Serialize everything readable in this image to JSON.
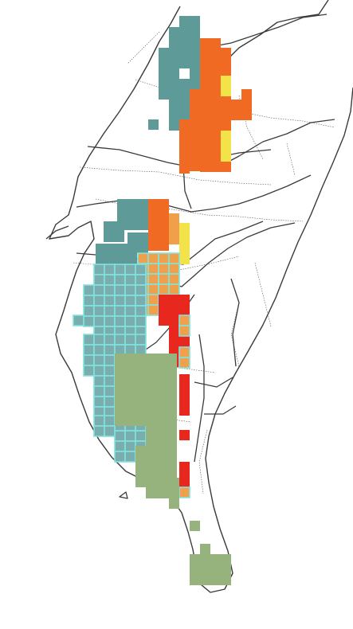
{
  "map": {
    "background_color": "#ffffff",
    "line_color": "#333333",
    "legend_colors": {
      "teal": "#5e9b98",
      "orange": "#f06a24",
      "yellow": "#f2e34a",
      "tan_orange": "#f0a04a",
      "red": "#e8281e",
      "olive_green": "#97b37d",
      "cyan_outline": "#7fe3e0",
      "cyan_fill": "#7aaeae"
    }
  }
}
